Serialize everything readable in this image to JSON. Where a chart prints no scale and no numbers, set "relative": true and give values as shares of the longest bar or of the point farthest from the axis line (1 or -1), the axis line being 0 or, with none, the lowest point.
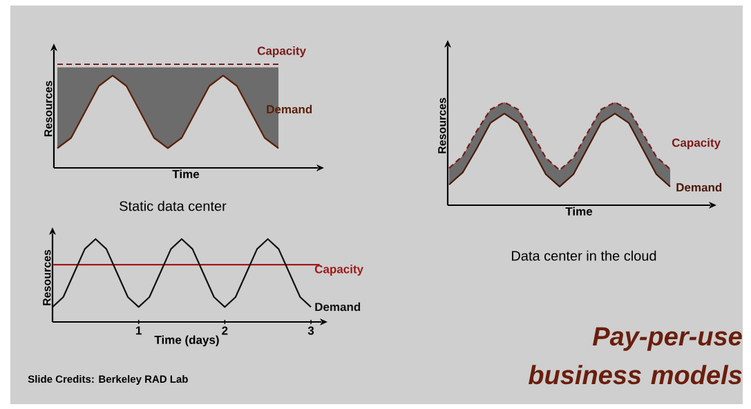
{
  "chart_data": [
    {
      "type": "line",
      "title": "Static data center",
      "xlabel": "Time",
      "ylabel": "Resources",
      "relative": true,
      "legend": false,
      "grid": false,
      "marker": "none",
      "categories": [
        null,
        null,
        null,
        null,
        null,
        null,
        null,
        null,
        null,
        null,
        null,
        null,
        null,
        null,
        null,
        null,
        null
      ],
      "series": [
        {
          "name": "Capacity",
          "color": "#7b1a1a",
          "line_style": "dashed",
          "values": [
            1,
            1,
            1,
            1,
            1,
            1,
            1,
            1,
            1,
            1,
            1,
            1,
            1,
            1,
            1,
            1,
            1
          ],
          "lower": [
            0.19,
            0.29,
            0.54,
            0.79,
            0.89,
            0.79,
            0.54,
            0.29,
            0.19,
            0.29,
            0.54,
            0.79,
            0.89,
            0.79,
            0.54,
            0.29,
            0.19
          ],
          "upper": [
            0.97,
            0.97,
            0.97,
            0.97,
            0.97,
            0.97,
            0.97,
            0.97,
            0.97,
            0.97,
            0.97,
            0.97,
            0.97,
            0.97,
            0.97,
            0.97,
            0.97
          ]
        },
        {
          "name": "Demand",
          "color": "#5a2008",
          "line_style": "solid",
          "values": [
            0.19,
            0.29,
            0.54,
            0.79,
            0.89,
            0.79,
            0.54,
            0.29,
            0.19,
            0.29,
            0.54,
            0.79,
            0.89,
            0.79,
            0.54,
            0.29,
            0.19
          ]
        }
      ]
    },
    {
      "type": "line",
      "xlabel": "Time (days)",
      "ylabel": "Resources",
      "relative": true,
      "legend": false,
      "grid": false,
      "marker": "none",
      "xlim": [
        0,
        3.12
      ],
      "xticks": [
        1,
        2,
        3
      ],
      "tick_labels": "x",
      "annotations": [
        "Slide Credits: Berkeley RAD Lab"
      ],
      "series": [
        {
          "name": "Capacity",
          "color": "#a01818",
          "line_style": "solid",
          "x": [
            0,
            3.1
          ],
          "values": [
            0.69,
            0.69
          ]
        },
        {
          "name": "Demand",
          "color": "#111111",
          "line_style": "solid",
          "x": [
            0,
            0.125,
            0.25,
            0.375,
            0.5,
            0.625,
            0.75,
            0.875,
            1,
            1.125,
            1.25,
            1.375,
            1.5,
            1.625,
            1.75,
            1.875,
            2,
            2.125,
            2.25,
            2.375,
            2.5,
            2.625,
            2.75,
            2.875,
            3
          ],
          "values": [
            0.18,
            0.3,
            0.59,
            0.88,
            1,
            0.88,
            0.59,
            0.3,
            0.18,
            0.3,
            0.59,
            0.88,
            1,
            0.88,
            0.59,
            0.3,
            0.18,
            0.3,
            0.59,
            0.88,
            1,
            0.88,
            0.59,
            0.3,
            0.18
          ]
        }
      ]
    },
    {
      "type": "line",
      "title": "Data center in the cloud",
      "xlabel": "Time",
      "ylabel": "Resources",
      "relative": true,
      "legend": false,
      "grid": false,
      "marker": "none",
      "annotations": [
        "Pay-per-use business models"
      ],
      "categories": [
        null,
        null,
        null,
        null,
        null,
        null,
        null,
        null,
        null,
        null,
        null,
        null,
        null,
        null,
        null,
        null,
        null
      ],
      "series": [
        {
          "name": "Capacity",
          "color": "#7b1a1a",
          "line_style": "dashed",
          "values": [
            0.36,
            0.48,
            0.72,
            0.93,
            1,
            0.93,
            0.7,
            0.46,
            0.34,
            0.46,
            0.7,
            0.93,
            1,
            0.93,
            0.7,
            0.47,
            0.35
          ],
          "lower": [
            0.2,
            0.32,
            0.55,
            0.8,
            0.89,
            0.8,
            0.55,
            0.3,
            0.18,
            0.3,
            0.55,
            0.8,
            0.89,
            0.8,
            0.55,
            0.3,
            0.18
          ],
          "upper": [
            0.36,
            0.48,
            0.72,
            0.93,
            1,
            0.93,
            0.7,
            0.46,
            0.34,
            0.46,
            0.7,
            0.93,
            1,
            0.93,
            0.7,
            0.47,
            0.35
          ]
        },
        {
          "name": "Demand",
          "color": "#4a1a08",
          "line_style": "solid",
          "values": [
            0.2,
            0.32,
            0.55,
            0.8,
            0.89,
            0.8,
            0.55,
            0.3,
            0.18,
            0.3,
            0.55,
            0.8,
            0.89,
            0.8,
            0.55,
            0.3,
            0.18
          ]
        }
      ]
    }
  ]
}
